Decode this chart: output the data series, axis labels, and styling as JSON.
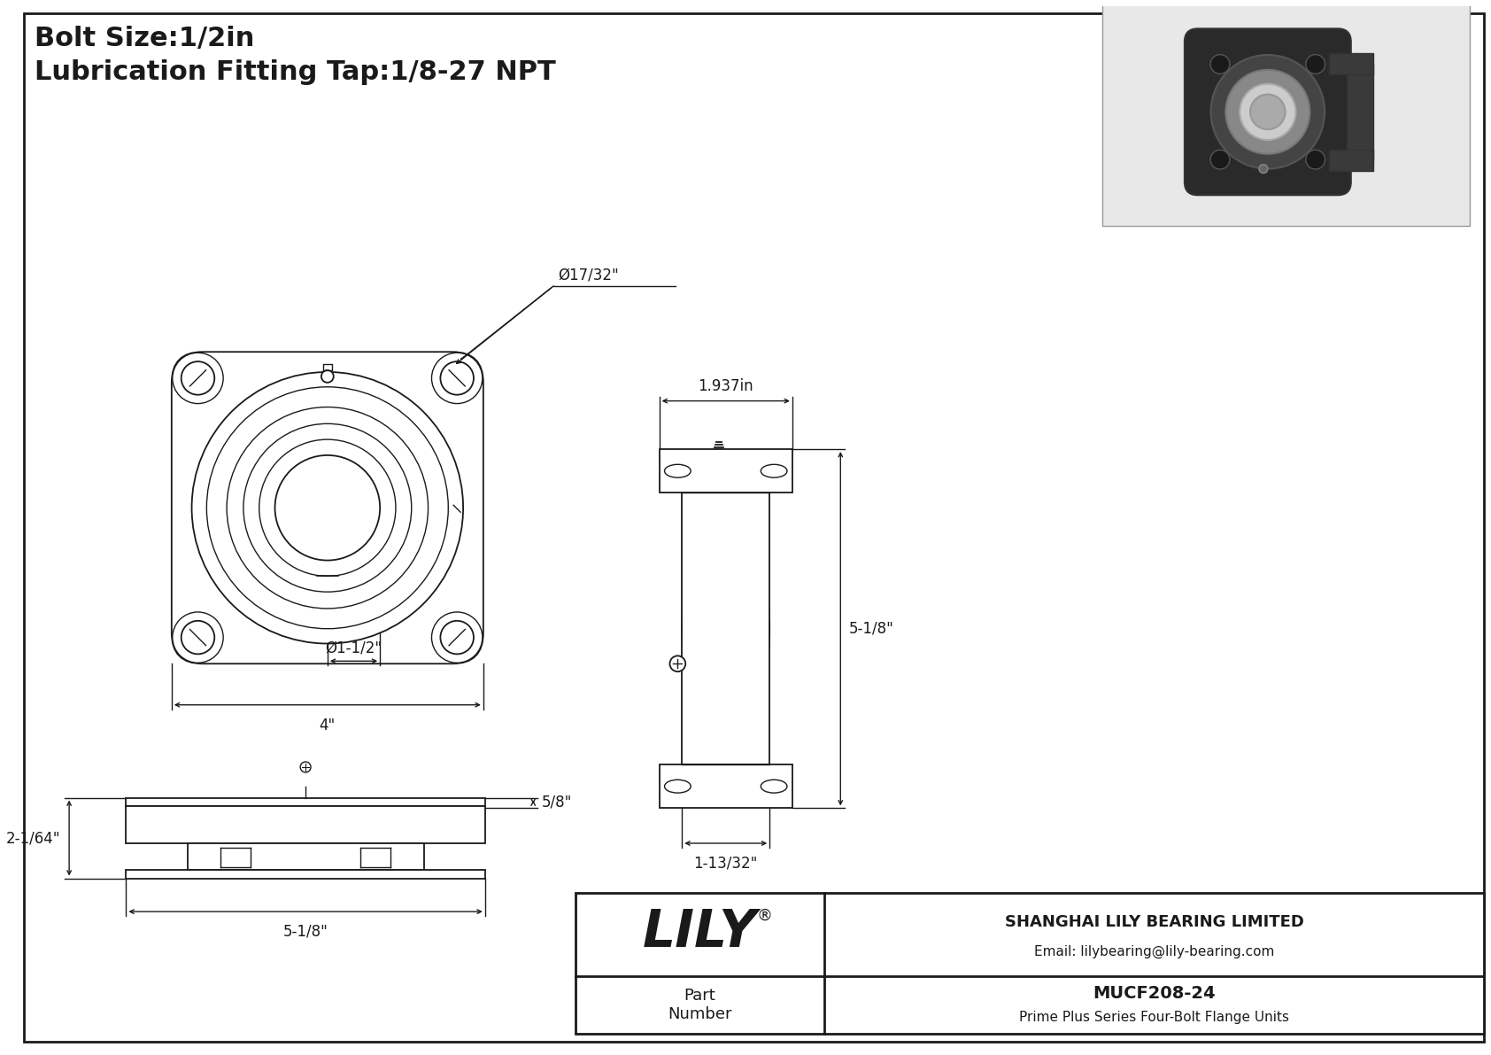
{
  "title_line1": "Bolt Size:1/2in",
  "title_line2": "Lubrication Fitting Tap:1/8-27 NPT",
  "bg_color": "#ffffff",
  "line_color": "#1a1a1a",
  "company_name": "SHANGHAI LILY BEARING LIMITED",
  "company_email": "Email: lilybearing@lily-bearing.com",
  "part_label": "Part\nNumber",
  "part_number": "MUCF208-24",
  "part_desc": "Prime Plus Series Four-Bolt Flange Units",
  "lily_text": "LILY",
  "dims": {
    "bolt_hole_dia": "Ø17/32\"",
    "bore_dia": "Ø1-1/2\"",
    "bolt_circle": "4\"",
    "height": "5-1/8\"",
    "width_top": "1.937in",
    "width_bot": "1-13/32\"",
    "depth": "5-1/8\"",
    "flange_h": "2-1/64\"",
    "flange_d": "5/8\""
  }
}
